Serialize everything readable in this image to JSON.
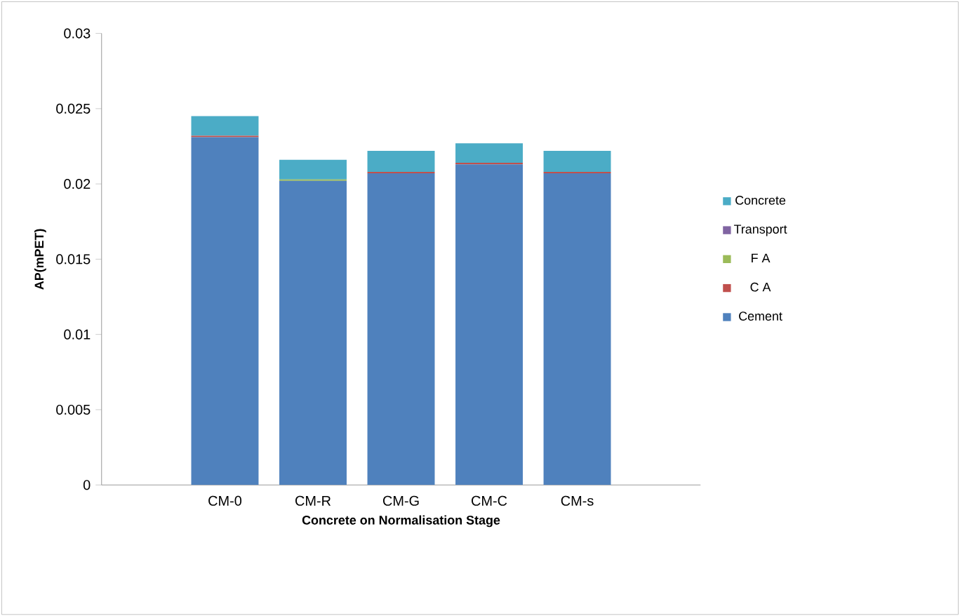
{
  "chart_data": {
    "type": "bar",
    "stacked": true,
    "xlabel": "Concrete on Normalisation Stage",
    "ylabel": "AP(mPET)",
    "categories": [
      "CM-0",
      "CM-R",
      "CM-G",
      "CM-C",
      "CM-s"
    ],
    "series": [
      {
        "name": "Cement",
        "color": "#4f81bd",
        "values": [
          0.0231,
          0.0202,
          0.0207,
          0.0213,
          0.0207
        ]
      },
      {
        "name": "C A",
        "color": "#c0504d",
        "values": [
          0.0001,
          0,
          0.0001,
          0.0001,
          0.0001
        ]
      },
      {
        "name": "F A",
        "color": "#9bbb59",
        "values": [
          0,
          0.0001,
          0,
          0,
          0
        ]
      },
      {
        "name": "Transport",
        "color": "#8064a2",
        "values": [
          0,
          0,
          0,
          0,
          0
        ]
      },
      {
        "name": "Concrete",
        "color": "#4bacc6",
        "values": [
          0.0013,
          0.0013,
          0.0014,
          0.0013,
          0.0014
        ]
      }
    ],
    "ylim": [
      0,
      0.03
    ],
    "yticks": [
      0,
      0.005,
      0.01,
      0.015,
      0.02,
      0.025,
      0.03
    ],
    "legend": "right",
    "grid": false
  }
}
